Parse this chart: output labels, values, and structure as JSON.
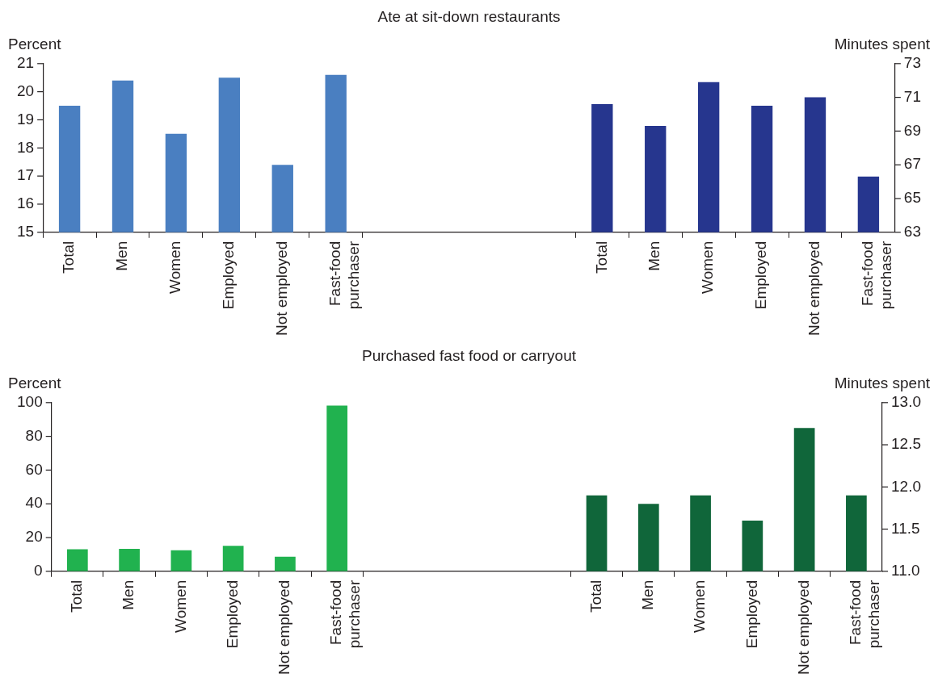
{
  "chart_data": [
    {
      "type": "bar",
      "title": "Ate at sit-down restaurants",
      "ylabel": "Percent",
      "y2label": "Minutes spent",
      "categories": [
        "Total",
        "Men",
        "Women",
        "Employed",
        "Not employed",
        "Fast-food purchaser",
        null,
        null,
        null,
        null,
        "Total",
        "Men",
        "Women",
        "Employed",
        "Not employed",
        "Fast-food purchaser"
      ],
      "series": [
        {
          "color": "#4a7fc1",
          "values": [
            19.5,
            20.4,
            18.5,
            20.5,
            17.4,
            20.6,
            null,
            null,
            null,
            null,
            null,
            null,
            null,
            null,
            null,
            null
          ]
        },
        {
          "color": "#26368e",
          "axis": "y2",
          "values": [
            null,
            null,
            null,
            null,
            null,
            null,
            null,
            null,
            null,
            null,
            70.6,
            69.3,
            71.9,
            70.5,
            71.0,
            66.3
          ]
        }
      ],
      "ylim": [
        15,
        21
      ],
      "yticks": [
        15,
        16,
        17,
        18,
        19,
        20,
        21
      ],
      "y2lim": [
        63,
        73
      ],
      "y2ticks": [
        63,
        65,
        67,
        69,
        71,
        73
      ],
      "grid": false,
      "legend": false
    },
    {
      "type": "bar",
      "title": "Purchased fast food or carryout",
      "ylabel": "Percent",
      "y2label": "Minutes spent",
      "categories": [
        "Total",
        "Men",
        "Women",
        "Employed",
        "Not employed",
        "Fast-food purchaser",
        null,
        null,
        null,
        null,
        "Total",
        "Men",
        "Women",
        "Employed",
        "Not employed",
        "Fast-food purchaser"
      ],
      "series": [
        {
          "color": "#21b24f",
          "values": [
            13,
            13.3,
            12.4,
            15.1,
            8.6,
            98.2,
            null,
            null,
            null,
            null,
            null,
            null,
            null,
            null,
            null,
            null
          ]
        },
        {
          "color": "#10663a",
          "axis": "y2",
          "values": [
            null,
            null,
            null,
            null,
            null,
            null,
            null,
            null,
            null,
            null,
            11.9,
            11.8,
            11.9,
            11.6,
            12.7,
            11.9
          ]
        }
      ],
      "ylim": [
        0,
        100
      ],
      "yticks": [
        0,
        20,
        40,
        60,
        80,
        100
      ],
      "y2lim": [
        11.0,
        13.0
      ],
      "y2ticks": [
        {
          "value": 11,
          "label": "11.0"
        },
        {
          "value": 11.5,
          "label": "11.5"
        },
        {
          "value": 12,
          "label": "12.0"
        },
        {
          "value": 12.5,
          "label": "12.5"
        },
        {
          "value": 13,
          "label": "13.0"
        }
      ],
      "grid": false,
      "legend": false
    }
  ]
}
